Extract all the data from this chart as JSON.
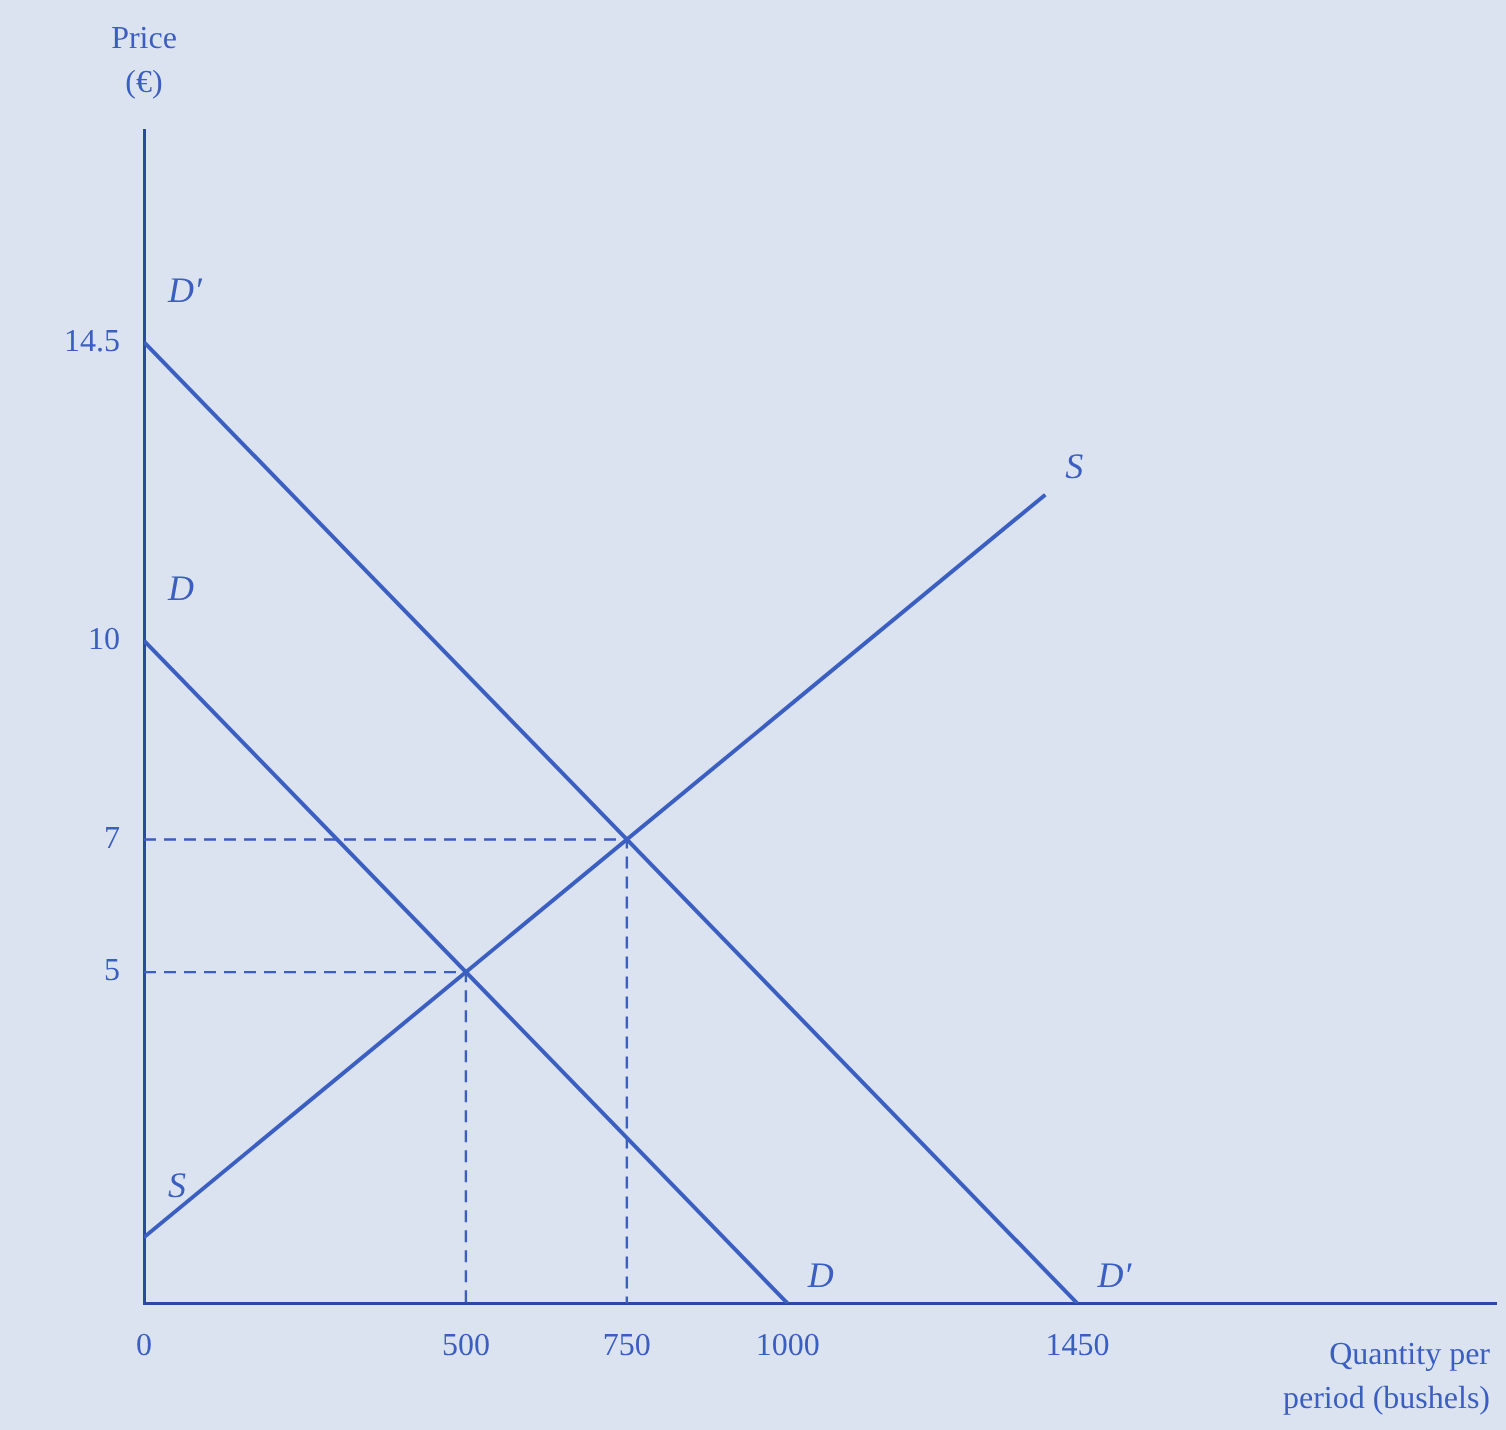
{
  "chart_data": {
    "type": "line",
    "xlabel": "Quantity per period (bushels)",
    "ylabel": "Price (€)",
    "xlim": [
      0,
      2100
    ],
    "ylim": [
      0,
      17.7
    ],
    "xticks": [
      0,
      500,
      750,
      1000,
      1450
    ],
    "yticks": [
      5,
      7,
      10,
      14.5
    ],
    "grid": false,
    "legend": false,
    "marker": "none",
    "line_style": "solid",
    "series": [
      {
        "name": "D",
        "color": "#3b5fc0",
        "x": [
          0,
          1000
        ],
        "values": [
          10,
          0
        ]
      },
      {
        "name": "D′",
        "color": "#3b5fc0",
        "x": [
          0,
          1450
        ],
        "values": [
          14.5,
          0
        ]
      },
      {
        "name": "S",
        "color": "#3b5fc0",
        "x": [
          0,
          1400
        ],
        "values": [
          1,
          12.2
        ]
      },
      {
        "color": "#3b5fc0",
        "x": [
          0,
          750,
          750
        ],
        "values": [
          7,
          7,
          0
        ],
        "line_style": "dashed"
      },
      {
        "color": "#3b5fc0",
        "x": [
          0,
          500,
          500
        ],
        "values": [
          5,
          5,
          0
        ],
        "line_style": "dashed"
      }
    ]
  }
}
